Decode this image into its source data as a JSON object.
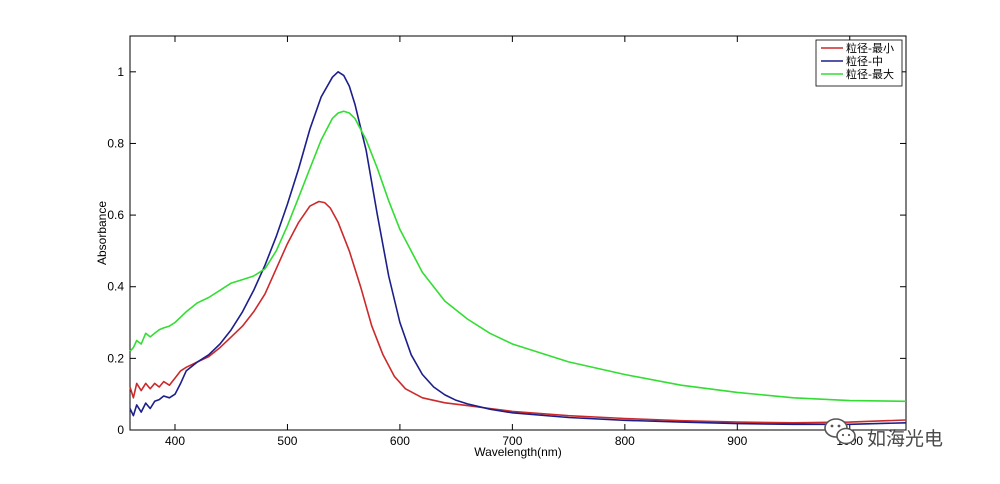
{
  "chart_data": {
    "type": "line",
    "title": "",
    "xlabel": "Wavelength(nm)",
    "ylabel": "Absorbance",
    "xlim": [
      360,
      1050
    ],
    "ylim": [
      0,
      1.1
    ],
    "x_ticks": [
      400,
      500,
      600,
      700,
      800,
      900,
      1000
    ],
    "y_ticks": [
      0,
      0.2,
      0.4,
      0.6,
      0.8,
      1
    ],
    "y_tick_labels": [
      "0",
      "0.2",
      "0.4",
      "0.6",
      "0.8",
      "1"
    ],
    "grid": false,
    "legend_position": "top-right",
    "series": [
      {
        "name": "粒径-最小",
        "color": "#cc2a2a",
        "x": [
          360,
          363,
          366,
          370,
          374,
          378,
          382,
          386,
          390,
          395,
          400,
          405,
          410,
          420,
          430,
          440,
          450,
          460,
          470,
          480,
          490,
          500,
          510,
          520,
          528,
          533,
          538,
          545,
          555,
          565,
          575,
          585,
          595,
          605,
          620,
          640,
          660,
          680,
          700,
          750,
          800,
          850,
          900,
          950,
          1000,
          1050
        ],
        "y": [
          0.12,
          0.09,
          0.13,
          0.11,
          0.13,
          0.115,
          0.13,
          0.12,
          0.135,
          0.125,
          0.145,
          0.165,
          0.175,
          0.19,
          0.205,
          0.23,
          0.26,
          0.29,
          0.33,
          0.38,
          0.45,
          0.52,
          0.58,
          0.625,
          0.638,
          0.635,
          0.62,
          0.58,
          0.5,
          0.4,
          0.29,
          0.21,
          0.15,
          0.115,
          0.09,
          0.076,
          0.068,
          0.06,
          0.052,
          0.04,
          0.032,
          0.026,
          0.022,
          0.02,
          0.022,
          0.028
        ]
      },
      {
        "name": "粒径-中",
        "color": "#1c1f8a",
        "x": [
          360,
          363,
          366,
          370,
          374,
          378,
          382,
          386,
          390,
          395,
          400,
          405,
          410,
          420,
          430,
          440,
          450,
          460,
          470,
          480,
          490,
          500,
          510,
          520,
          530,
          540,
          545,
          550,
          555,
          560,
          570,
          580,
          590,
          600,
          610,
          620,
          630,
          640,
          650,
          660,
          680,
          700,
          750,
          800,
          850,
          900,
          950,
          1000,
          1050
        ],
        "y": [
          0.06,
          0.04,
          0.07,
          0.05,
          0.075,
          0.06,
          0.08,
          0.085,
          0.095,
          0.09,
          0.1,
          0.13,
          0.165,
          0.19,
          0.21,
          0.24,
          0.28,
          0.33,
          0.39,
          0.46,
          0.54,
          0.63,
          0.73,
          0.84,
          0.93,
          0.985,
          1.0,
          0.99,
          0.96,
          0.91,
          0.78,
          0.6,
          0.43,
          0.3,
          0.21,
          0.155,
          0.12,
          0.098,
          0.083,
          0.073,
          0.058,
          0.048,
          0.035,
          0.027,
          0.022,
          0.018,
          0.016,
          0.016,
          0.02
        ]
      },
      {
        "name": "粒径-最大",
        "color": "#33dd33",
        "x": [
          360,
          363,
          366,
          370,
          374,
          378,
          382,
          386,
          390,
          395,
          400,
          410,
          420,
          430,
          440,
          450,
          460,
          470,
          480,
          490,
          500,
          510,
          520,
          530,
          540,
          545,
          550,
          555,
          560,
          570,
          580,
          590,
          600,
          620,
          640,
          660,
          680,
          700,
          750,
          800,
          850,
          900,
          950,
          1000,
          1050
        ],
        "y": [
          0.22,
          0.23,
          0.25,
          0.24,
          0.27,
          0.26,
          0.27,
          0.28,
          0.285,
          0.29,
          0.3,
          0.33,
          0.355,
          0.37,
          0.39,
          0.41,
          0.42,
          0.43,
          0.45,
          0.5,
          0.57,
          0.65,
          0.73,
          0.81,
          0.87,
          0.885,
          0.89,
          0.885,
          0.87,
          0.81,
          0.73,
          0.64,
          0.56,
          0.44,
          0.36,
          0.31,
          0.27,
          0.24,
          0.19,
          0.155,
          0.125,
          0.105,
          0.09,
          0.082,
          0.08
        ]
      }
    ]
  },
  "watermark": {
    "icon": "wechat-icon",
    "text": "如海光电"
  }
}
